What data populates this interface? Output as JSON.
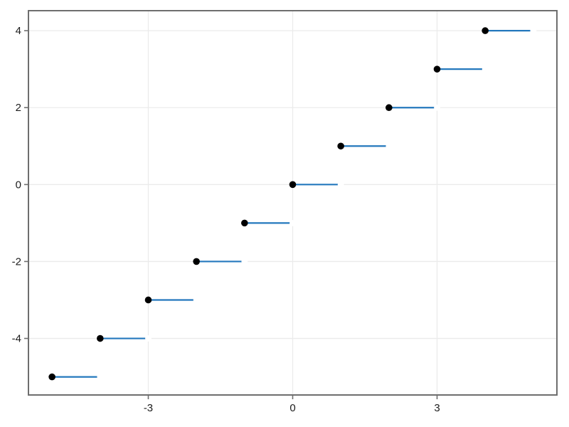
{
  "chart_data": {
    "type": "line",
    "subtype": "step-function-floor",
    "title": "",
    "xlabel": "",
    "ylabel": "",
    "xlim": [
      -5.49,
      5.49
    ],
    "ylim": [
      -5.47,
      4.52
    ],
    "xticks": [
      -3,
      0,
      3
    ],
    "yticks": [
      -4,
      -2,
      0,
      2,
      4
    ],
    "grid": true,
    "legend": "none",
    "series": [
      {
        "name": "floor-step-series",
        "steps": [
          {
            "x0": -5,
            "x1": -4,
            "y": -5
          },
          {
            "x0": -4,
            "x1": -3,
            "y": -4
          },
          {
            "x0": -3,
            "x1": -2,
            "y": -3
          },
          {
            "x0": -2,
            "x1": -1,
            "y": -2
          },
          {
            "x0": -1,
            "x1": 0,
            "y": -1
          },
          {
            "x0": 0,
            "x1": 1,
            "y": 0
          },
          {
            "x0": 1,
            "x1": 2,
            "y": 1
          },
          {
            "x0": 2,
            "x1": 3,
            "y": 2
          },
          {
            "x0": 3,
            "x1": 4,
            "y": 3
          },
          {
            "x0": 4,
            "x1": 5,
            "y": 4
          }
        ],
        "closed_points": [
          [
            -5,
            -5
          ],
          [
            -4,
            -4
          ],
          [
            -3,
            -3
          ],
          [
            -2,
            -2
          ],
          [
            -1,
            -1
          ],
          [
            0,
            0
          ],
          [
            1,
            1
          ],
          [
            2,
            2
          ],
          [
            3,
            3
          ],
          [
            4,
            4
          ]
        ],
        "open_points": [
          [
            -4,
            -5
          ],
          [
            -3,
            -4
          ],
          [
            -2,
            -3
          ],
          [
            -1,
            -2
          ],
          [
            0,
            -1
          ],
          [
            1,
            0
          ],
          [
            2,
            1
          ],
          [
            3,
            2
          ],
          [
            4,
            3
          ],
          [
            5,
            4
          ]
        ]
      }
    ],
    "colors": {
      "line": "#2478bd",
      "marker": "#000000",
      "open_marker": "#ffffff",
      "grid": "#ebebeb",
      "spine": "#6e6e6e",
      "tick": "#6e6e6e",
      "tick_label": "#1c1c1c",
      "background": "#ffffff"
    }
  }
}
